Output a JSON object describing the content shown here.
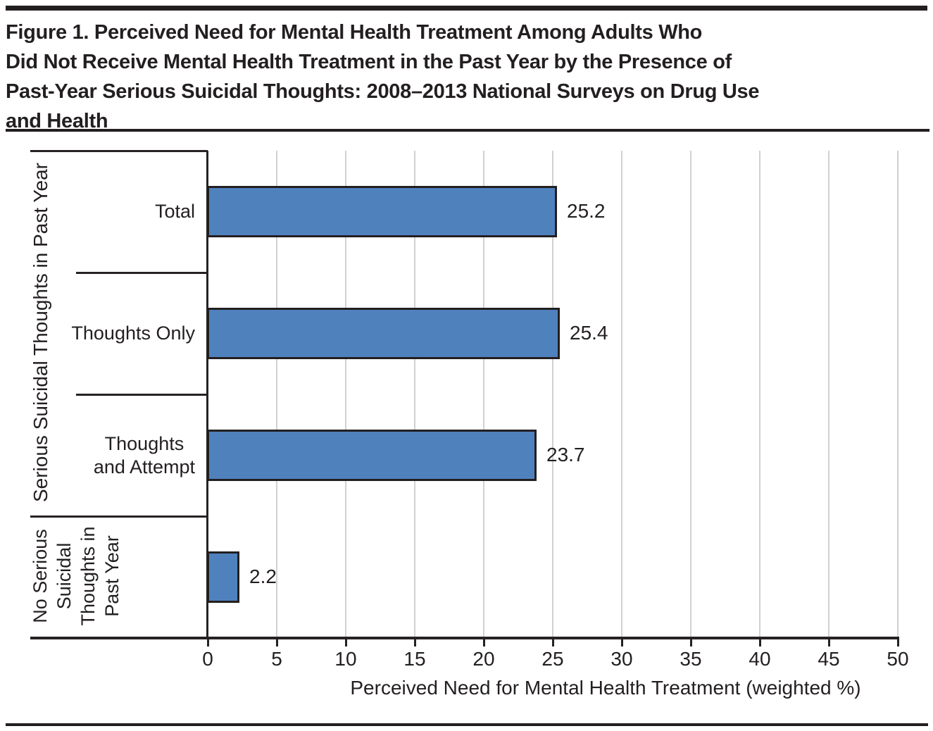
{
  "figure": {
    "title_lines": [
      "Figure 1. Perceived Need for Mental Health Treatment Among Adults Who",
      "Did Not Receive Mental Health Treatment in the Past Year by the Presence of",
      "Past-Year Serious Suicidal Thoughts: 2008–2013 National Surveys on Drug Use",
      "and Health"
    ]
  },
  "chart_data": {
    "type": "bar",
    "orientation": "horizontal",
    "title": "Figure 1. Perceived Need for Mental Health Treatment Among Adults Who Did Not Receive Mental Health Treatment in the Past Year by the Presence of Past-Year Serious Suicidal Thoughts: 2008–2013 National Surveys on Drug Use and Health",
    "categories": [
      "Total",
      "Thoughts Only",
      "Thoughts and Attempt",
      "No Serious Suicidal Thoughts in Past Year"
    ],
    "values": [
      25.2,
      25.4,
      23.7,
      2.2
    ],
    "value_labels": [
      "25.2",
      "25.4",
      "23.7",
      "2.2"
    ],
    "category_display_lines": [
      [
        "Total"
      ],
      [
        "Thoughts Only"
      ],
      [
        "Thoughts",
        "and Attempt"
      ],
      []
    ],
    "group_labels": [
      {
        "text": "Serious Suicidal Thoughts in Past Year",
        "lines": [
          "Serious Suicidal Thoughts in Past Year"
        ],
        "category_span": [
          0,
          2
        ]
      },
      {
        "text": "No Serious Suicidal Thoughts in Past Year",
        "lines": [
          "No Serious",
          "Suicidal",
          "Thoughts in",
          "Past Year"
        ],
        "category_span": [
          3,
          3
        ]
      }
    ],
    "xlabel": "Perceived Need for Mental Health Treatment (weighted %)",
    "ylabel": "",
    "xlim": [
      0,
      50
    ],
    "xticks": [
      0,
      5,
      10,
      15,
      20,
      25,
      30,
      35,
      40,
      45,
      50
    ],
    "grid": "vertical",
    "legend": "none",
    "colors": {
      "bar_fill": "#4F81BD",
      "bar_border": "#231F20",
      "gridline": "#D2D1D1",
      "axis": "#262223",
      "text": "#231F20"
    }
  }
}
